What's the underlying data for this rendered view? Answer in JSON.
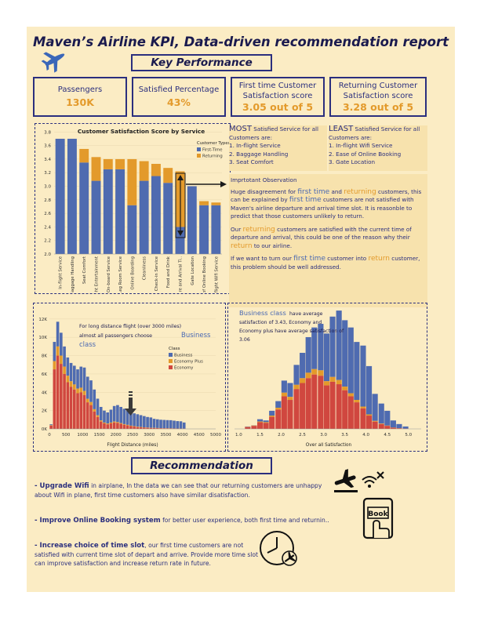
{
  "title": "Maven’s Airline KPI, Data-driven recommendation report",
  "key_performance_header": "Key Performance",
  "kpis": [
    {
      "label": "Passengers",
      "value": "130K"
    },
    {
      "label": "Satisfied Percentage",
      "value": "43%"
    },
    {
      "label": "First time Customer Satisfaction score",
      "value": "3.05 out of 5"
    },
    {
      "label": "Returning Customer Satisfaction score",
      "value": "3.28 out of 5"
    }
  ],
  "most": {
    "big": "MOST",
    "rest": " Satisfied Service for all Customers are:",
    "items": [
      "1. In-flight Service",
      "2. Baggage Handling",
      "3. Seat Comfort"
    ]
  },
  "least": {
    "big": "LEAST",
    "rest": " Satisfied Service for all Customers are:",
    "items": [
      "1. In-flight Wifi Service",
      "2. Ease of Online Booking",
      "3. Gate Location"
    ]
  },
  "observation": {
    "heading": "Imprtotant Observation",
    "p1_a": "Huge disagreement for ",
    "p1_first": "first time",
    "p1_and": " and ",
    "p1_returning": "returning",
    "p1_b": " customers, this can be explained by ",
    "p1_first2": "first time",
    "p1_c": " customers are not satisfied with Maven's airline departure and arrival time slot. It is reasonble to predict that those customers unlikely to return.",
    "p2_a": "Our ",
    "p2_returning": "returning",
    "p2_b": " customers are satisfied with the current time of departure and arrival, this could be one of the reason why their ",
    "p2_return": "return",
    "p2_c": " to our airline.",
    "p3_a": "If we want to turn our ",
    "p3_first": "first time",
    "p3_b": " customer into ",
    "p3_return": "return",
    "p3_c": " customer, this problem should be well addressed."
  },
  "recommendation_header": "Recommendation",
  "recommendations": [
    {
      "bold": "- Upgrade Wifi",
      "text": " in airplane, In the data we can see that our returning customers are unhappy about Wifi in plane, first time customers also have similar disatisfaction."
    },
    {
      "bold": "- Improve Online Booking system",
      "text": " for better user experience, both first time and returnin.."
    },
    {
      "bold": "- Increase choice of time slot",
      "text": ", our first time customers are not satisfied with current time slot of depart and arrive. Provide more time slot can improve satisfaction and increase return rate in future."
    }
  ],
  "book_icon_label": "Book",
  "chart_data": [
    {
      "type": "bar",
      "title": "Customer Satisfaction Score by Service",
      "legend_title": "Customer Types",
      "legend_position": "top-right",
      "categories": [
        "In-flight Service",
        "Baggage Handling",
        "Seat Comfort",
        "In-flight Entertainment",
        "On-board Service",
        "Leg Room Service",
        "Online Boarding",
        "Cleanliness",
        "Check-in Service",
        "Food and Drink",
        "Departure and Arrival Ti..",
        "Gate Location",
        "Ease of Online Booking",
        "In-flight Wifi Service"
      ],
      "series": [
        {
          "name": "First-Time",
          "values": [
            3.7,
            3.7,
            3.35,
            3.08,
            3.25,
            3.25,
            2.72,
            3.08,
            3.15,
            3.05,
            2.4,
            3.0,
            2.72,
            2.72
          ]
        },
        {
          "name": "Returning",
          "values": [
            3.7,
            3.7,
            3.55,
            3.43,
            3.4,
            3.4,
            3.4,
            3.37,
            3.33,
            3.27,
            3.22,
            3.0,
            2.78,
            2.76
          ]
        }
      ],
      "yticks": [
        "2.0",
        "2.2",
        "2.4",
        "2.6",
        "2.8",
        "3.0",
        "3.2",
        "3.4",
        "3.6",
        "3.8"
      ],
      "ylim": [
        2.0,
        3.85
      ],
      "colors": {
        "First-Time": "#4f6bb0",
        "Returning": "#e39a2b"
      }
    },
    {
      "type": "bar",
      "subtype": "histogram-stacked",
      "annotation_a": "For long distance flight (over 3000 miles) almost all passengers choose ",
      "annotation_b": "Business class",
      "xlabel": "Flight Distance (miles)",
      "legend_title": "Class",
      "series_names": [
        "Business",
        "Economy Plus",
        "Economy"
      ],
      "colors": {
        "Business": "#4f6bb0",
        "Economy Plus": "#e39a2b",
        "Economy": "#d0473f"
      },
      "xticks": [
        "0",
        "500",
        "1000",
        "1500",
        "2000",
        "2500",
        "3000",
        "3500",
        "4000",
        "4500",
        "5000"
      ],
      "yticks": [
        "0K",
        "2K",
        "4K",
        "6K",
        "8K",
        "10K",
        "12K"
      ],
      "xlim": [
        0,
        5000
      ],
      "ylim": [
        0,
        12500
      ],
      "bin_width": 100,
      "total": [
        500,
        9500,
        11700,
        10500,
        9000,
        7800,
        7200,
        6900,
        6500,
        6800,
        6700,
        5700,
        5300,
        4300,
        3300,
        2400,
        2000,
        1800,
        2100,
        2500,
        2600,
        2400,
        2200,
        2000,
        1850,
        1700,
        1600,
        1500,
        1400,
        1300,
        1250,
        1100,
        1050,
        1000,
        980,
        960,
        950,
        900,
        850,
        830,
        700
      ],
      "economy": [
        350,
        6500,
        8000,
        7100,
        6000,
        5100,
        4600,
        4300,
        3900,
        4000,
        3700,
        2900,
        2600,
        1900,
        1300,
        800,
        600,
        500,
        600,
        700,
        650,
        550,
        450,
        380,
        300,
        250,
        200,
        170,
        140,
        120,
        100,
        90,
        80,
        70,
        60,
        55,
        50,
        40,
        35,
        30,
        20
      ],
      "economy_plus": [
        50,
        900,
        1000,
        900,
        800,
        700,
        600,
        550,
        500,
        500,
        450,
        380,
        330,
        250,
        180,
        120,
        90,
        80,
        90,
        100,
        90,
        80,
        70,
        60,
        50,
        45,
        40,
        35,
        30,
        25,
        20,
        18,
        15,
        12,
        10,
        10,
        8,
        7,
        6,
        5,
        4
      ]
    },
    {
      "type": "bar",
      "subtype": "histogram-stacked",
      "annotation_a": "Business class",
      "annotation_b": " have average satisfaction of 3.43, Economy and Economy plus have average satisfaction of 3.06",
      "xlabel": "Over all Satisfaction",
      "xticks": [
        "1.0",
        "1.5",
        "2.0",
        "2.5",
        "3.0",
        "3.5",
        "4.0",
        "4.5",
        "5.0"
      ],
      "xlim": [
        0.9,
        5.3
      ],
      "ylim": [
        0,
        1
      ],
      "bin_width": 0.143,
      "bin_starts": [
        1.14,
        1.29,
        1.43,
        1.57,
        1.71,
        1.86,
        2.0,
        2.14,
        2.29,
        2.43,
        2.57,
        2.71,
        2.86,
        3.0,
        3.14,
        3.29,
        3.43,
        3.57,
        3.71,
        3.86,
        4.0,
        4.14,
        4.29,
        4.43,
        4.57,
        4.71,
        4.86
      ],
      "total": [
        0.02,
        0.03,
        0.08,
        0.07,
        0.15,
        0.23,
        0.4,
        0.38,
        0.53,
        0.63,
        0.76,
        0.84,
        0.87,
        0.79,
        0.93,
        0.98,
        0.9,
        0.84,
        0.72,
        0.69,
        0.52,
        0.29,
        0.21,
        0.15,
        0.07,
        0.04,
        0.02
      ],
      "economy": [
        0.015,
        0.025,
        0.055,
        0.05,
        0.1,
        0.16,
        0.27,
        0.24,
        0.33,
        0.38,
        0.42,
        0.45,
        0.44,
        0.36,
        0.39,
        0.37,
        0.32,
        0.27,
        0.22,
        0.17,
        0.11,
        0.06,
        0.04,
        0.025,
        0.01,
        0.005,
        0.002
      ],
      "economy_plus": [
        0.002,
        0.003,
        0.006,
        0.006,
        0.01,
        0.015,
        0.03,
        0.025,
        0.035,
        0.04,
        0.045,
        0.045,
        0.045,
        0.035,
        0.04,
        0.035,
        0.03,
        0.025,
        0.02,
        0.015,
        0.01,
        0.006,
        0.004,
        0.002,
        0.001,
        0.001,
        0.0
      ]
    }
  ]
}
